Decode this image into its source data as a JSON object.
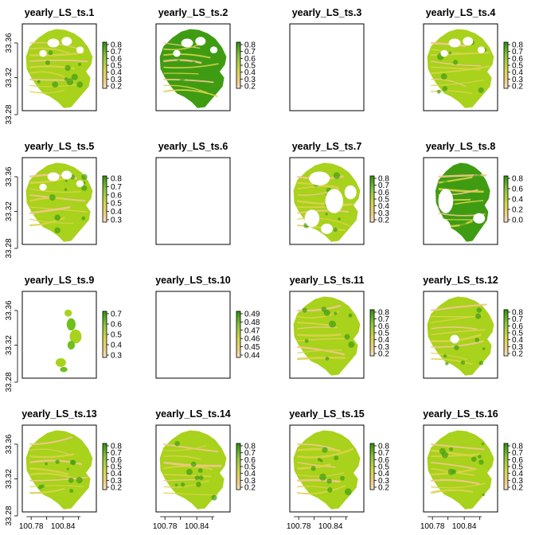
{
  "figure": {
    "layout": "4x4 grid of raster map panels",
    "colors": {
      "low": "#f2c68e",
      "mid_low": "#d9d34a",
      "mid": "#a8d21c",
      "mid_high": "#6fbf1e",
      "high": "#3f9c12",
      "legend_ramp_top": "#2f8f0f",
      "legend_ramp_bottom": "#f6e4c6"
    },
    "shared_axes": {
      "y_ticks": [
        "33.28",
        "33.32",
        "33.36"
      ],
      "x_ticks": [
        "100.78",
        "100.84"
      ]
    }
  },
  "chart_data": [
    {
      "type": "heatmap",
      "title": "yearly_LS_ts.1",
      "shape": "full_holes",
      "legend_ticks": [
        "0.8",
        "0.7",
        "0.6",
        "0.5",
        "0.4",
        "0.3",
        "0.2"
      ],
      "coverage": "partial",
      "show_y_axis": true,
      "show_x_axis": false
    },
    {
      "type": "heatmap",
      "title": "yearly_LS_ts.2",
      "shape": "full_holes_green",
      "legend_ticks": [
        "0.8",
        "0.7",
        "0.6",
        "0.5",
        "0.4",
        "0.3",
        "0.2"
      ],
      "coverage": "partial",
      "show_y_axis": false,
      "show_x_axis": false
    },
    {
      "type": "heatmap",
      "title": "yearly_LS_ts.3",
      "shape": "empty",
      "legend_ticks": [],
      "coverage": "none",
      "show_y_axis": false,
      "show_x_axis": false
    },
    {
      "type": "heatmap",
      "title": "yearly_LS_ts.4",
      "shape": "full_holes",
      "legend_ticks": [
        "0.8",
        "0.7",
        "0.6",
        "0.5",
        "0.4",
        "0.3",
        "0.2"
      ],
      "coverage": "partial",
      "show_y_axis": false,
      "show_x_axis": false
    },
    {
      "type": "heatmap",
      "title": "yearly_LS_ts.5",
      "shape": "full_holes",
      "legend_ticks": [
        "0.8",
        "0.7",
        "0.6",
        "0.5",
        "0.4",
        "0.3"
      ],
      "coverage": "partial",
      "show_y_axis": true,
      "show_x_axis": false
    },
    {
      "type": "heatmap",
      "title": "yearly_LS_ts.6",
      "shape": "empty",
      "legend_ticks": [],
      "coverage": "none",
      "show_y_axis": false,
      "show_x_axis": false
    },
    {
      "type": "heatmap",
      "title": "yearly_LS_ts.7",
      "shape": "sparse",
      "legend_ticks": [
        "0.8",
        "0.7",
        "0.6",
        "0.5",
        "0.4",
        "0.3",
        "0.2"
      ],
      "coverage": "partial",
      "show_y_axis": false,
      "show_x_axis": false
    },
    {
      "type": "heatmap",
      "title": "yearly_LS_ts.8",
      "shape": "partial_green",
      "legend_ticks": [
        "0.8",
        "0.6",
        "0.4",
        "0.2",
        "0.0"
      ],
      "coverage": "partial",
      "show_y_axis": false,
      "show_x_axis": false
    },
    {
      "type": "heatmap",
      "title": "yearly_LS_ts.9",
      "shape": "tiny",
      "legend_ticks": [
        "0.7",
        "0.6",
        "0.5",
        "0.4",
        "0.3"
      ],
      "coverage": "minimal",
      "show_y_axis": true,
      "show_x_axis": false
    },
    {
      "type": "heatmap",
      "title": "yearly_LS_ts.10",
      "shape": "empty",
      "legend_ticks": [
        "0.49",
        "0.48",
        "0.47",
        "0.46",
        "0.45",
        "0.44"
      ],
      "coverage": "none",
      "show_y_axis": false,
      "show_x_axis": false
    },
    {
      "type": "heatmap",
      "title": "yearly_LS_ts.11",
      "shape": "full",
      "legend_ticks": [
        "0.8",
        "0.7",
        "0.6",
        "0.5",
        "0.4",
        "0.3",
        "0.2"
      ],
      "coverage": "full",
      "show_y_axis": false,
      "show_x_axis": false
    },
    {
      "type": "heatmap",
      "title": "yearly_LS_ts.12",
      "shape": "full_hole_center",
      "legend_ticks": [
        "0.8",
        "0.7",
        "0.6",
        "0.5",
        "0.4",
        "0.3",
        "0.2"
      ],
      "coverage": "full",
      "show_y_axis": false,
      "show_x_axis": false
    },
    {
      "type": "heatmap",
      "title": "yearly_LS_ts.13",
      "shape": "full",
      "legend_ticks": [
        "0.8",
        "0.7",
        "0.6",
        "0.5",
        "0.4",
        "0.3",
        "0.2"
      ],
      "coverage": "full",
      "show_y_axis": true,
      "show_x_axis": true
    },
    {
      "type": "heatmap",
      "title": "yearly_LS_ts.14",
      "shape": "full",
      "legend_ticks": [
        "0.8",
        "0.7",
        "0.6",
        "0.5",
        "0.4",
        "0.3",
        "0.2"
      ],
      "coverage": "full",
      "show_y_axis": false,
      "show_x_axis": true
    },
    {
      "type": "heatmap",
      "title": "yearly_LS_ts.15",
      "shape": "full",
      "legend_ticks": [
        "0.8",
        "0.7",
        "0.6",
        "0.5",
        "0.4",
        "0.3",
        "0.2"
      ],
      "coverage": "full",
      "show_y_axis": false,
      "show_x_axis": true
    },
    {
      "type": "heatmap",
      "title": "yearly_LS_ts.16",
      "shape": "full",
      "legend_ticks": [
        "0.8",
        "0.7",
        "0.6",
        "0.5",
        "0.4",
        "0.3",
        "0.2"
      ],
      "coverage": "full",
      "show_y_axis": false,
      "show_x_axis": true
    }
  ]
}
